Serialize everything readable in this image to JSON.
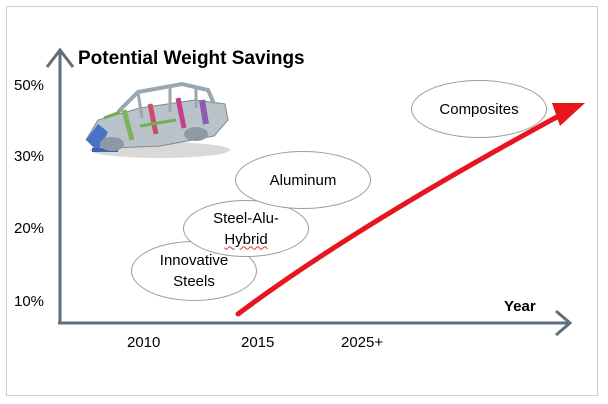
{
  "title": "Potential Weight Savings",
  "axis": {
    "y_ticks": [
      "50%",
      "30%",
      "20%",
      "10%"
    ],
    "x_ticks": [
      "2010",
      "2015",
      "2025+"
    ],
    "x_label": "Year"
  },
  "bubbles": {
    "innovative_steels": {
      "line1": "Innovative",
      "line2": "Steels"
    },
    "steel_alu_hybrid": {
      "line1": "Steel-Alu-",
      "line2": "Hybrid"
    },
    "aluminum": "Aluminum",
    "composites": "Composites"
  },
  "colors": {
    "axis": "#5f6f7c",
    "trend_arrow": "#e8141e",
    "bubble_border": "#9c9c9c"
  },
  "icons": {
    "car_image": "car-body-frame-image"
  }
}
